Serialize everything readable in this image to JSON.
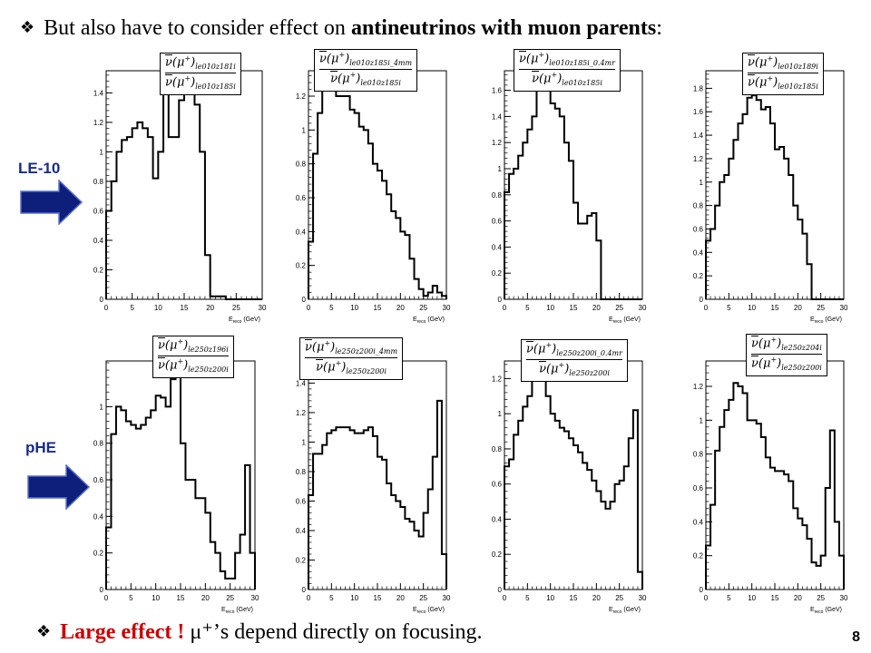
{
  "header": {
    "bullet": "❖",
    "text_plain": "But also have to consider effect on ",
    "text_bold": "antineutrinos with muon parents",
    "text_end": ":"
  },
  "footer": {
    "bullet": "❖",
    "red_text": "Large effect !",
    "rest_text": " μ⁺’s depend directly on focusing."
  },
  "page_number": "8",
  "row_labels": [
    "LE-10",
    "pHE"
  ],
  "axis_title": "E",
  "axis_title_sub": "reco",
  "axis_title_unit": " (GeV)",
  "formulas": [
    {
      "num_sub": "le010z181i",
      "den_sub": "le010z185i"
    },
    {
      "num_sub": "le010z185i_4mm",
      "den_sub": "le010z185i"
    },
    {
      "num_sub": "le010z185i_0.4mr",
      "den_sub": "le010z185i"
    },
    {
      "num_sub": "le010z189i",
      "den_sub": "le010z185i"
    },
    {
      "num_sub": "le250z196i",
      "den_sub": "le250z200i"
    },
    {
      "num_sub": "le250z200i_4mm",
      "den_sub": "le250z200i"
    },
    {
      "num_sub": "le250z200i_0.4mr",
      "den_sub": "le250z200i"
    },
    {
      "num_sub": "le250z204i",
      "den_sub": "le250z200i"
    }
  ],
  "chart_data": [
    {
      "type": "line",
      "step": true,
      "xlim": [
        0,
        30
      ],
      "ylim": [
        0,
        1.55
      ],
      "yticks": [
        0,
        0.2,
        0.4,
        0.6,
        0.8,
        1,
        1.2,
        1.4
      ],
      "xticks": [
        0,
        5,
        10,
        15,
        20,
        25,
        30
      ],
      "values": [
        0.6,
        0.8,
        1.0,
        1.08,
        1.1,
        1.16,
        1.2,
        1.16,
        1.1,
        0.82,
        1.0,
        1.5,
        1.1,
        1.1,
        1.35,
        1.5,
        1.46,
        1.32,
        1.0,
        0.3,
        0.02,
        0.02,
        0.02,
        0,
        0,
        0,
        0,
        0,
        0,
        0
      ]
    },
    {
      "type": "line",
      "step": true,
      "xlim": [
        0,
        30
      ],
      "ylim": [
        0,
        1.35
      ],
      "yticks": [
        0,
        0.2,
        0.4,
        0.6,
        0.8,
        1,
        1.2
      ],
      "xticks": [
        0,
        5,
        10,
        15,
        20,
        25,
        30
      ],
      "values": [
        0.34,
        0.86,
        1.1,
        1.24,
        1.3,
        1.28,
        1.2,
        1.2,
        1.2,
        1.12,
        1.1,
        1.02,
        1.0,
        0.92,
        0.8,
        0.76,
        0.7,
        0.62,
        0.52,
        0.48,
        0.4,
        0.38,
        0.24,
        0.12,
        0.06,
        0.02,
        0.04,
        0.08,
        0.04,
        0.02
      ]
    },
    {
      "type": "line",
      "step": true,
      "xlim": [
        0,
        30
      ],
      "ylim": [
        0,
        1.75
      ],
      "yticks": [
        0,
        0.2,
        0.4,
        0.6,
        0.8,
        1,
        1.2,
        1.4,
        1.6
      ],
      "xticks": [
        0,
        5,
        10,
        15,
        20,
        25,
        30
      ],
      "values": [
        0.82,
        0.96,
        1.0,
        1.1,
        1.2,
        1.3,
        1.4,
        1.6,
        1.7,
        1.6,
        1.5,
        1.46,
        1.4,
        1.2,
        1.06,
        0.74,
        0.58,
        0.58,
        0.64,
        0.66,
        0.45,
        0,
        0,
        0,
        0,
        0,
        0,
        0,
        0,
        0
      ]
    },
    {
      "type": "line",
      "step": true,
      "xlim": [
        0,
        30
      ],
      "ylim": [
        0,
        1.95
      ],
      "yticks": [
        0,
        0.2,
        0.4,
        0.6,
        0.8,
        1,
        1.2,
        1.4,
        1.6,
        1.8
      ],
      "xticks": [
        0,
        5,
        10,
        15,
        20,
        25,
        30
      ],
      "values": [
        0.5,
        0.6,
        0.8,
        1.0,
        1.06,
        1.2,
        1.36,
        1.5,
        1.58,
        1.72,
        1.74,
        1.7,
        1.62,
        1.64,
        1.5,
        1.28,
        1.3,
        1.2,
        1.06,
        0.8,
        0.68,
        0.56,
        0.3,
        0,
        0,
        0,
        0,
        0,
        0,
        0
      ]
    },
    {
      "type": "line",
      "step": true,
      "xlim": [
        0,
        30
      ],
      "ylim": [
        0,
        1.25
      ],
      "yticks": [
        0,
        0.2,
        0.4,
        0.6,
        0.8,
        1
      ],
      "xticks": [
        0,
        5,
        10,
        15,
        20,
        25,
        30
      ],
      "values": [
        0.34,
        0.85,
        1.0,
        0.98,
        0.92,
        0.9,
        0.88,
        0.9,
        0.94,
        0.98,
        1.06,
        1.05,
        1.0,
        1.15,
        1.2,
        0.8,
        0.6,
        0.6,
        0.5,
        0.5,
        0.42,
        0.26,
        0.2,
        0.1,
        0.06,
        0.06,
        0.2,
        0.3,
        0.68,
        0.2
      ]
    },
    {
      "type": "line",
      "step": true,
      "xlim": [
        0,
        30
      ],
      "ylim": [
        0,
        1.55
      ],
      "yticks": [
        0,
        0.2,
        0.4,
        0.6,
        0.8,
        1,
        1.2,
        1.4
      ],
      "xticks": [
        0,
        5,
        10,
        15,
        20,
        25,
        30
      ],
      "values": [
        0.64,
        0.92,
        0.92,
        0.98,
        1.06,
        1.08,
        1.1,
        1.1,
        1.1,
        1.08,
        1.06,
        1.06,
        1.08,
        1.1,
        1.04,
        0.9,
        0.88,
        0.72,
        0.64,
        0.6,
        0.56,
        0.48,
        0.46,
        0.4,
        0.36,
        0.52,
        0.68,
        0.9,
        1.28,
        0.24
      ]
    },
    {
      "type": "line",
      "step": true,
      "xlim": [
        0,
        30
      ],
      "ylim": [
        0,
        1.3
      ],
      "yticks": [
        0,
        0.2,
        0.4,
        0.6,
        0.8,
        1,
        1.2
      ],
      "xticks": [
        0,
        5,
        10,
        15,
        20,
        25,
        30
      ],
      "values": [
        0.7,
        0.74,
        0.88,
        0.96,
        1.04,
        1.1,
        1.2,
        1.25,
        1.25,
        1.1,
        1.0,
        0.96,
        0.92,
        0.9,
        0.86,
        0.82,
        0.78,
        0.72,
        0.68,
        0.62,
        0.56,
        0.5,
        0.46,
        0.5,
        0.6,
        0.62,
        0.7,
        0.86,
        1.02,
        0.1
      ]
    },
    {
      "type": "line",
      "step": true,
      "xlim": [
        0,
        30
      ],
      "ylim": [
        0,
        1.35
      ],
      "yticks": [
        0,
        0.2,
        0.4,
        0.6,
        0.8,
        1,
        1.2
      ],
      "xticks": [
        0,
        5,
        10,
        15,
        20,
        25,
        30
      ],
      "values": [
        0.26,
        0.5,
        0.82,
        0.96,
        1.06,
        1.12,
        1.22,
        1.2,
        1.16,
        1.0,
        1.0,
        0.98,
        0.9,
        0.78,
        0.72,
        0.7,
        0.7,
        0.68,
        0.64,
        0.48,
        0.42,
        0.38,
        0.3,
        0.16,
        0.14,
        0.2,
        0.6,
        0.94,
        0.4,
        0.2
      ]
    }
  ]
}
